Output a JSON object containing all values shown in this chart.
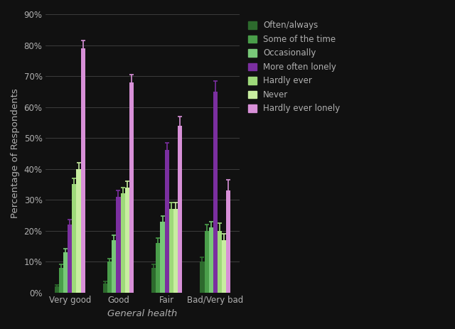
{
  "categories": [
    "Very good",
    "Good",
    "Fair",
    "Bad/Very bad"
  ],
  "series": [
    {
      "label": "Often/always",
      "color": "#2d6a2d",
      "values": [
        2,
        3,
        8,
        10
      ],
      "errors": [
        0.5,
        0.5,
        1.2,
        1.5
      ]
    },
    {
      "label": "Some of the time",
      "color": "#4a9e4a",
      "values": [
        8,
        10,
        16,
        20
      ],
      "errors": [
        1.0,
        1.0,
        1.5,
        2.0
      ]
    },
    {
      "label": "Occasionally",
      "color": "#78c878",
      "values": [
        13,
        17,
        23,
        21
      ],
      "errors": [
        1.2,
        1.5,
        1.8,
        2.0
      ]
    },
    {
      "label": "More often lonely",
      "color": "#7b2fa0",
      "values": [
        22,
        31,
        46,
        65
      ],
      "errors": [
        1.5,
        2.0,
        2.5,
        3.5
      ]
    },
    {
      "label": "Hardly ever",
      "color": "#9ed97a",
      "values": [
        35,
        32,
        27,
        20
      ],
      "errors": [
        1.8,
        2.0,
        2.0,
        2.5
      ]
    },
    {
      "label": "Never",
      "color": "#c8eda0",
      "values": [
        40,
        34,
        27,
        17
      ],
      "errors": [
        2.0,
        2.0,
        2.0,
        2.0
      ]
    },
    {
      "label": "Hardly ever lonely",
      "color": "#d890d8",
      "values": [
        79,
        68,
        54,
        33
      ],
      "errors": [
        2.5,
        2.5,
        3.0,
        3.5
      ]
    }
  ],
  "ylabel": "Percentage of Respondents",
  "xlabel": "General health",
  "ylim": [
    0,
    90
  ],
  "yticks": [
    0,
    10,
    20,
    30,
    40,
    50,
    60,
    70,
    80,
    90
  ],
  "ytick_labels": [
    "0%",
    "10%",
    "20%",
    "30%",
    "40%",
    "50%",
    "60%",
    "70%",
    "80%",
    "90%"
  ],
  "background_color": "#111111",
  "plot_bg_color": "#111111",
  "text_color": "#b0b0b0",
  "grid_color": "#444444",
  "bar_width": 0.09,
  "legend_fontsize": 8.5,
  "axis_fontsize": 9.5,
  "tick_fontsize": 8.5
}
